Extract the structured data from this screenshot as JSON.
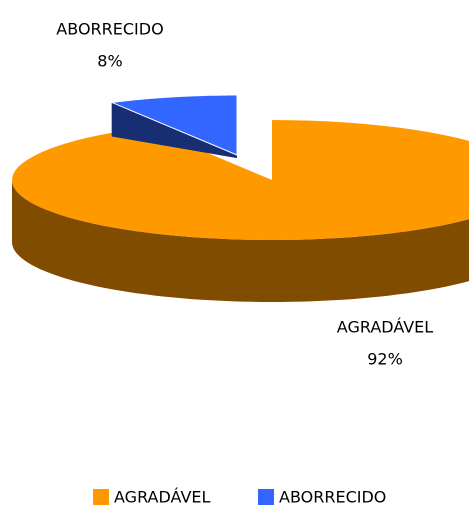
{
  "chart_data": {
    "type": "pie3d",
    "categories": [
      "AGRADÁVEL",
      "ABORRECIDO"
    ],
    "values": [
      92,
      8
    ],
    "value_labels": [
      "92%",
      "8%"
    ],
    "colors": [
      "#FF9900",
      "#3366FF"
    ],
    "legend": "bottom"
  }
}
